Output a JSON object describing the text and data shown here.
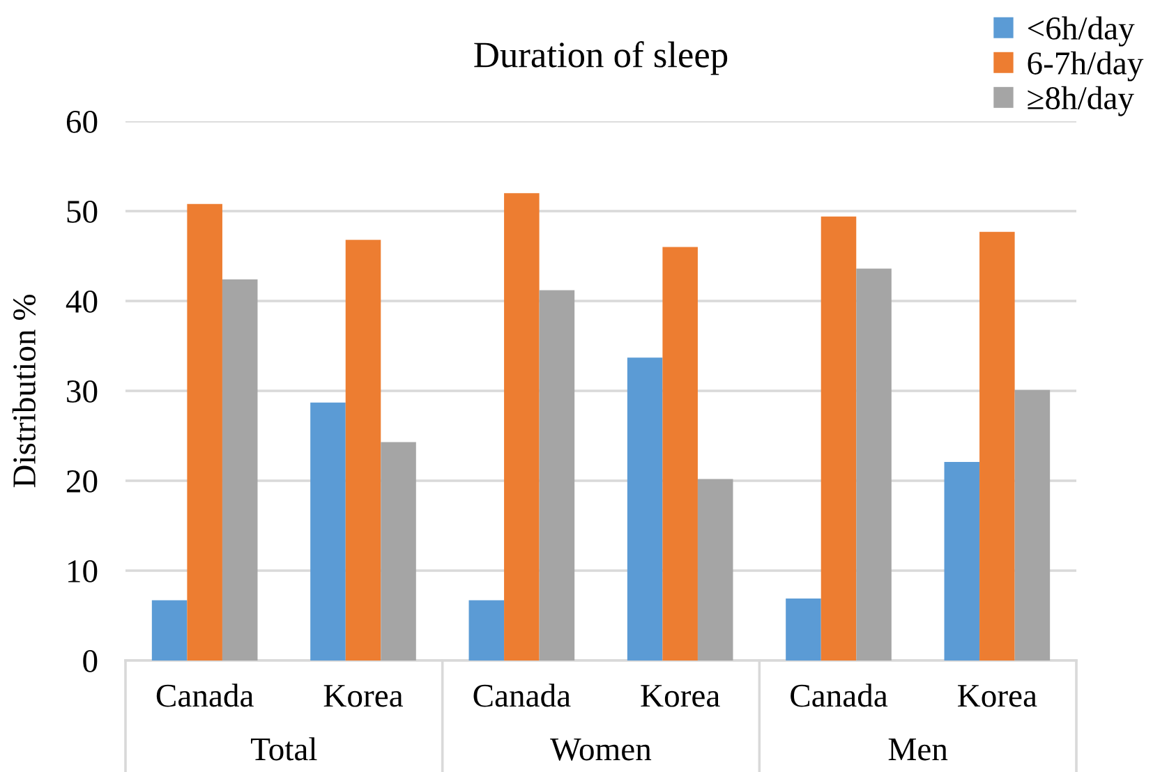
{
  "chart_data": {
    "type": "bar",
    "title": "Duration of sleep",
    "ylabel": "Distribution %",
    "categories": [
      "Canada",
      "Korea",
      "Canada",
      "Korea",
      "Canada",
      "Korea"
    ],
    "series": [
      {
        "name": "<6h/day",
        "color": "#5b9bd5",
        "values": [
          6.7,
          28.7,
          6.7,
          33.7,
          6.9,
          22.1
        ]
      },
      {
        "name": "6-7h/day",
        "color": "#ed7d31",
        "values": [
          50.8,
          46.8,
          52.0,
          46.0,
          49.4,
          47.7
        ]
      },
      {
        "name": "≥8h/day",
        "color": "#a5a5a5",
        "values": [
          42.4,
          24.3,
          41.2,
          20.2,
          43.6,
          30.1
        ]
      }
    ],
    "ylim": [
      0,
      60
    ],
    "yticks": [
      0,
      10,
      20,
      30,
      40,
      50,
      60
    ],
    "grid": "y",
    "legend": "top right",
    "annotations": [
      "Total",
      "Women",
      "Men"
    ]
  }
}
